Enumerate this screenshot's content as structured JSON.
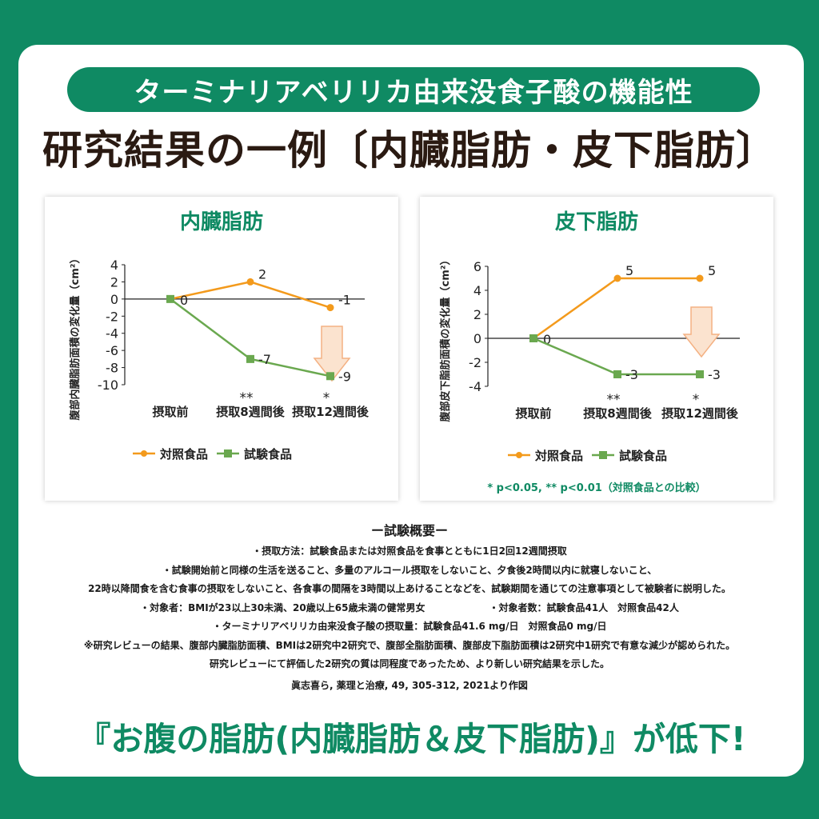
{
  "header": {
    "banner": "ターミナリアベリリカ由来没食子酸の機能性",
    "title": "研究結果の一例〔内臓脂肪・皮下脂肪〕"
  },
  "colors": {
    "green": "#0f8a63",
    "control": "#f39a1c",
    "test": "#6aa84f",
    "arrow": "#f4b183"
  },
  "chart_data": [
    {
      "type": "line",
      "title": "内臓脂肪",
      "ylabel": "腹部内臓脂肪面積の変化量（cm²）",
      "xlabel": "",
      "categories": [
        "摂取前",
        "摂取8週間後",
        "摂取12週間後"
      ],
      "ylim": [
        -10,
        4
      ],
      "yticks": [
        4,
        2,
        0,
        -2,
        -4,
        -6,
        -8,
        -10
      ],
      "series": [
        {
          "name": "対照食品",
          "values": [
            0,
            2,
            -1
          ],
          "labels": [
            "0",
            "2",
            "-1"
          ]
        },
        {
          "name": "試験食品",
          "values": [
            0,
            -7,
            -9
          ],
          "labels": [
            "",
            "-7",
            "-9"
          ]
        }
      ],
      "significance": [
        "",
        "**",
        "*"
      ],
      "legend": "bottom",
      "annotation_arrow": "down at 摂取12週間後"
    },
    {
      "type": "line",
      "title": "皮下脂肪",
      "ylabel": "腹部皮下脂肪面積の変化量（cm²）",
      "xlabel": "",
      "categories": [
        "摂取前",
        "摂取8週間後",
        "摂取12週間後"
      ],
      "ylim": [
        -4,
        6
      ],
      "yticks": [
        6,
        4,
        2,
        0,
        -2,
        -4
      ],
      "series": [
        {
          "name": "対照食品",
          "values": [
            0,
            5,
            5
          ],
          "labels": [
            "0",
            "5",
            "5"
          ]
        },
        {
          "name": "試験食品",
          "values": [
            0,
            -3,
            -3
          ],
          "labels": [
            "",
            "-3",
            "-3"
          ]
        }
      ],
      "significance": [
        "",
        "**",
        "*"
      ],
      "legend": "bottom",
      "annotation_arrow": "down at 摂取12週間後",
      "note": "* p<0.05,  ** p<0.01（対照食品との比較）"
    }
  ],
  "overview": {
    "heading": "ー試験概要ー",
    "lines": [
      "・摂取方法：試験食品または対照食品を食事とともに1日2回12週間摂取",
      "・試験開始前と同様の生活を送ること、多量のアルコール摂取をしないこと、夕食後2時間以内に就寝しないこと、",
      "22時以降間食を含む食事の摂取をしないこと、各食事の間隔を3時間以上あけることなどを、試験期間を通じての注意事項として被験者に説明した。"
    ],
    "subjects": "・対象者：BMIが23以上30未満、20歳以上65歳未満の健常男女",
    "count": "・対象者数：試験食品41人　対照食品42人",
    "lines2": [
      "・ターミナリアベリリカ由来没食子酸の摂取量：試験食品41.6 mg/日　対照食品0 mg/日",
      "※研究レビューの結果、腹部内臓脂肪面積、BMIは2研究中2研究で、腹部全脂肪面積、腹部皮下脂肪面積は2研究中1研究で有意な減少が認められた。",
      "研究レビューにて評価した2研究の質は同程度であったため、より新しい研究結果を示した。"
    ]
  },
  "citation": "眞志喜ら, 薬理と治療, 49, 305-312, 2021より作図",
  "bottom_text": "『お腹の脂肪(内臓脂肪＆皮下脂肪)』が低下!"
}
